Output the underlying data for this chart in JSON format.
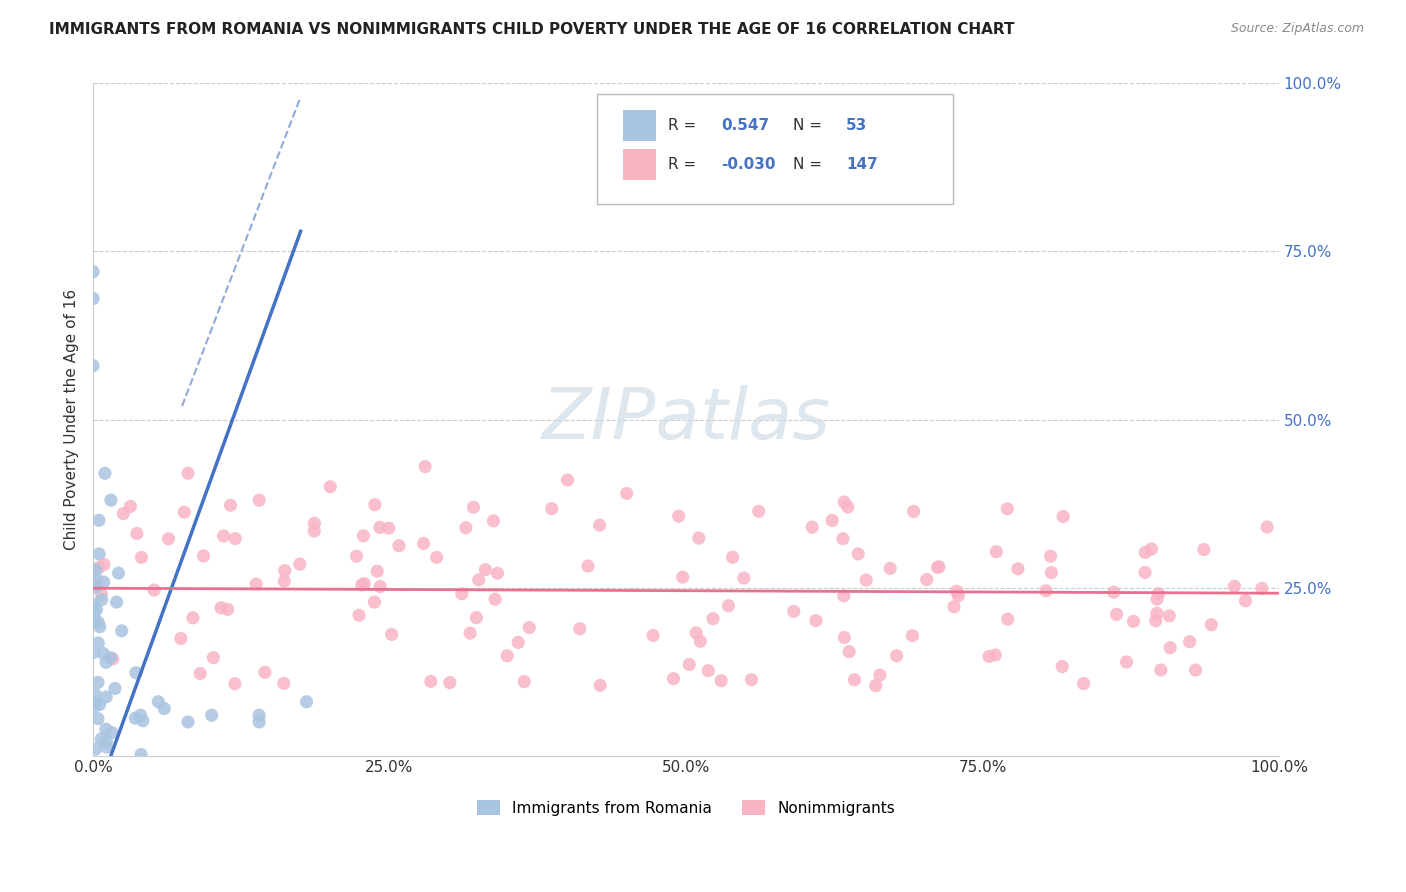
{
  "title": "IMMIGRANTS FROM ROMANIA VS NONIMMIGRANTS CHILD POVERTY UNDER THE AGE OF 16 CORRELATION CHART",
  "source": "Source: ZipAtlas.com",
  "ylabel": "Child Poverty Under the Age of 16",
  "xlim": [
    0.0,
    1.0
  ],
  "ylim": [
    0.0,
    1.0
  ],
  "r_blue": 0.547,
  "n_blue": 53,
  "r_pink": -0.03,
  "n_pink": 147,
  "blue_color": "#a8c4e0",
  "pink_color": "#f9b4c4",
  "blue_line_color": "#4472c4",
  "pink_line_color": "#e87090",
  "accent_color": "#4472c4",
  "watermark_color": "#d0dce8",
  "watermark": "ZIPatlas",
  "legend_blue_label": "Immigrants from Romania",
  "legend_pink_label": "Nonimmigrants",
  "grid_color": "#cccccc",
  "title_fontsize": 11,
  "tick_fontsize": 11,
  "ylabel_fontsize": 11
}
